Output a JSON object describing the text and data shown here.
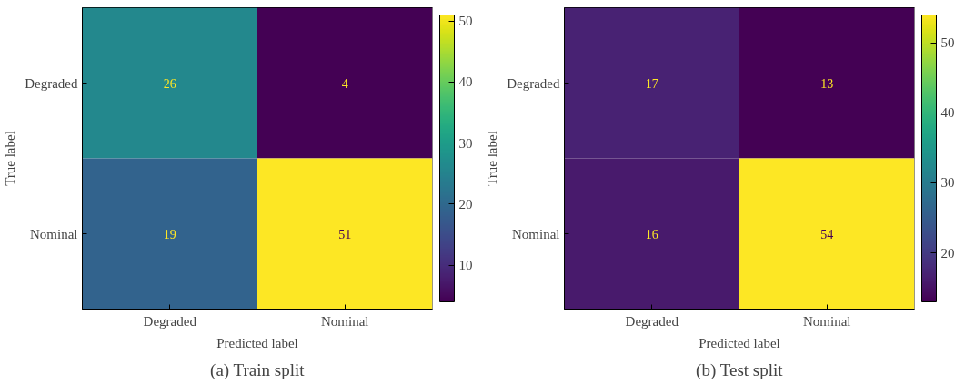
{
  "chart_data": [
    {
      "type": "heatmap",
      "title": "(a) Train split",
      "xlabel": "Predicted label",
      "ylabel": "True label",
      "categories": [
        "Degraded",
        "Nominal"
      ],
      "y_categories": [
        "Degraded",
        "Nominal"
      ],
      "cells": [
        [
          26,
          4
        ],
        [
          19,
          51
        ]
      ],
      "clim": [
        4,
        51
      ],
      "cticks": [
        10,
        20,
        30,
        40,
        50
      ],
      "data_labels": true
    },
    {
      "type": "heatmap",
      "title": "(b) Test split",
      "xlabel": "Predicted label",
      "ylabel": "True label",
      "categories": [
        "Degraded",
        "Nominal"
      ],
      "y_categories": [
        "Degraded",
        "Nominal"
      ],
      "cells": [
        [
          17,
          13
        ],
        [
          16,
          54
        ]
      ],
      "clim": [
        13,
        54
      ],
      "cticks": [
        20,
        30,
        40,
        50
      ],
      "data_labels": true
    }
  ]
}
